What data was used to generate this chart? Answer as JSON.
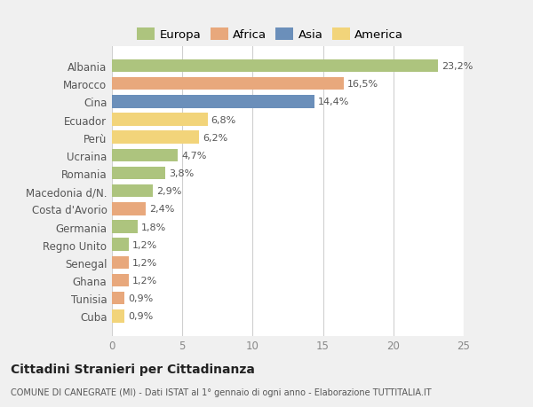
{
  "categories": [
    "Cuba",
    "Tunisia",
    "Ghana",
    "Senegal",
    "Regno Unito",
    "Germania",
    "Costa d'Avorio",
    "Macedonia d/N.",
    "Romania",
    "Ucraina",
    "Perù",
    "Ecuador",
    "Cina",
    "Marocco",
    "Albania"
  ],
  "values": [
    0.9,
    0.9,
    1.2,
    1.2,
    1.2,
    1.8,
    2.4,
    2.9,
    3.8,
    4.7,
    6.2,
    6.8,
    14.4,
    16.5,
    23.2
  ],
  "labels": [
    "0,9%",
    "0,9%",
    "1,2%",
    "1,2%",
    "1,2%",
    "1,8%",
    "2,4%",
    "2,9%",
    "3,8%",
    "4,7%",
    "6,2%",
    "6,8%",
    "14,4%",
    "16,5%",
    "23,2%"
  ],
  "continents": [
    "America",
    "Africa",
    "Africa",
    "Africa",
    "Europa",
    "Europa",
    "Africa",
    "Europa",
    "Europa",
    "Europa",
    "America",
    "America",
    "Asia",
    "Africa",
    "Europa"
  ],
  "continent_colors": {
    "Africa": "#e8a87c",
    "Asia": "#6b8cba",
    "America": "#f0d47a"
  },
  "continent_colors2": {
    "Europa": "#adc47e",
    "Africa": "#e8a87c",
    "Asia": "#6b8fba",
    "America": "#f2d47a"
  },
  "legend_items": [
    "Europa",
    "Africa",
    "Asia",
    "America"
  ],
  "legend_colors": [
    "#adc47e",
    "#e8a87c",
    "#6b8fba",
    "#f2d47a"
  ],
  "xlim": [
    0,
    25
  ],
  "xticks": [
    0,
    5,
    10,
    15,
    20,
    25
  ],
  "title": "Cittadini Stranieri per Cittadinanza",
  "subtitle": "COMUNE DI CANEGRATE (MI) - Dati ISTAT al 1° gennaio di ogni anno - Elaborazione TUTTITALIA.IT",
  "fig_bg_color": "#f0f0f0",
  "plot_bg_color": "#ffffff",
  "grid_color": "#d0d0d0"
}
